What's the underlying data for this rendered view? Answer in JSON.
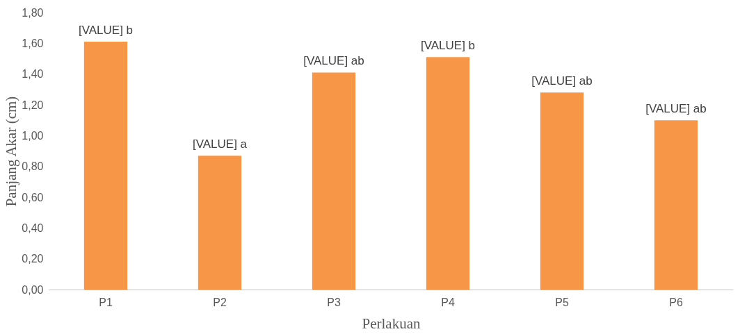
{
  "chart_data": {
    "type": "bar",
    "xlabel": "Perlakuan",
    "ylabel": "Panjang Akar (cm)",
    "categories": [
      "P1",
      "P2",
      "P3",
      "P4",
      "P5",
      "P6"
    ],
    "values": [
      1.61,
      0.87,
      1.41,
      1.51,
      1.28,
      1.1
    ],
    "value_labels": [
      "[VALUE] b",
      "[VALUE] a",
      "[VALUE] ab",
      "[VALUE] b",
      "[VALUE] ab",
      "[VALUE] ab"
    ],
    "color": "#f79646",
    "ylim": [
      0,
      1.8
    ],
    "yticks": [
      {
        "value": 0,
        "label": "0,00"
      },
      {
        "value": 0.2,
        "label": "0,20"
      },
      {
        "value": 0.4,
        "label": "0,40"
      },
      {
        "value": 0.6,
        "label": "0,60"
      },
      {
        "value": 0.8,
        "label": "0,80"
      },
      {
        "value": 1.0,
        "label": "1,00"
      },
      {
        "value": 1.2,
        "label": "1,20"
      },
      {
        "value": 1.4,
        "label": "1,40"
      },
      {
        "value": 1.6,
        "label": "1,60"
      },
      {
        "value": 1.8,
        "label": "1,80"
      }
    ],
    "grid": false
  }
}
